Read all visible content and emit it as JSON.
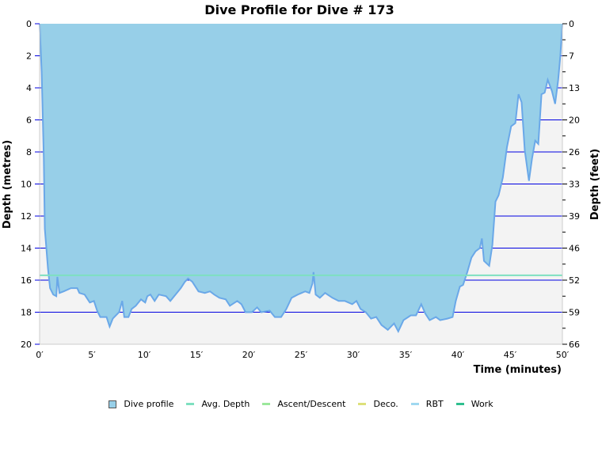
{
  "chart_data": {
    "type": "area",
    "title": "Dive Profile for Dive # 173",
    "xlabel": "Time (minutes)",
    "ylabel": "Depth (metres)",
    "ylabel_right": "Depth (feet)",
    "xlim": [
      0,
      50
    ],
    "ylim": [
      0,
      20
    ],
    "y_inverted": true,
    "x_ticks": [
      "0′",
      "5′",
      "10′",
      "15′",
      "20′",
      "25′",
      "30′",
      "35′",
      "40′",
      "45′",
      "50′"
    ],
    "y_ticks": [
      "0",
      "2",
      "4",
      "6",
      "8",
      "10",
      "12",
      "14",
      "16",
      "18",
      "20"
    ],
    "y_right_ticks": [
      "0",
      "7",
      "13",
      "20",
      "26",
      "33",
      "39",
      "46",
      "52",
      "59",
      "66"
    ],
    "grid": true,
    "legend_position": "bottom",
    "avg_depth": 15.7,
    "series": [
      {
        "name": "Dive profile",
        "color": "#97cfe8",
        "stroke": "#6aa8e8",
        "x": [
          0,
          0.2,
          0.4,
          0.5,
          0.8,
          1.0,
          1.3,
          1.6,
          1.7,
          1.9,
          2.3,
          3.0,
          3.6,
          3.8,
          4.3,
          4.8,
          5.2,
          5.5,
          5.8,
          6.4,
          6.7,
          7.0,
          7.6,
          7.9,
          8.1,
          8.5,
          8.8,
          9.2,
          9.7,
          10.1,
          10.3,
          10.6,
          11.0,
          11.4,
          12.1,
          12.5,
          13.0,
          13.5,
          13.9,
          14.2,
          14.6,
          15.2,
          15.8,
          16.3,
          16.7,
          17.2,
          17.8,
          18.2,
          18.9,
          19.3,
          19.7,
          20.3,
          20.8,
          21.2,
          22.0,
          22.5,
          23.1,
          23.6,
          24.1,
          24.7,
          25.4,
          25.8,
          26.1,
          26.2,
          26.4,
          26.8,
          27.3,
          28.0,
          28.6,
          29.2,
          29.9,
          30.3,
          30.7,
          31.2,
          31.7,
          32.2,
          32.7,
          33.3,
          33.9,
          34.3,
          34.8,
          35.5,
          36.0,
          36.5,
          36.9,
          37.3,
          37.9,
          38.3,
          39.0,
          39.5,
          39.8,
          40.2,
          40.5,
          40.9,
          41.3,
          41.7,
          42.1,
          42.3,
          42.5,
          43.0,
          43.3,
          43.6,
          43.9,
          44.3,
          44.7,
          45.1,
          45.5,
          45.8,
          46.1,
          46.4,
          46.8,
          47.1,
          47.4,
          47.7,
          48.0,
          48.3,
          48.6,
          49.0,
          49.3,
          49.6,
          49.8,
          50.0
        ],
        "y": [
          0,
          3.0,
          8.4,
          12.8,
          15.3,
          16.5,
          16.9,
          17.0,
          15.8,
          16.8,
          16.7,
          16.5,
          16.5,
          16.8,
          16.9,
          17.4,
          17.3,
          17.9,
          18.3,
          18.3,
          18.9,
          18.4,
          18.0,
          17.3,
          18.3,
          18.3,
          17.8,
          17.6,
          17.2,
          17.4,
          17.0,
          16.9,
          17.3,
          16.9,
          17.0,
          17.3,
          16.9,
          16.5,
          16.1,
          15.9,
          16.1,
          16.7,
          16.8,
          16.7,
          16.9,
          17.1,
          17.2,
          17.6,
          17.3,
          17.5,
          18.0,
          18.0,
          17.7,
          18.0,
          17.9,
          18.3,
          18.3,
          17.8,
          17.1,
          16.9,
          16.7,
          16.8,
          16.2,
          15.5,
          16.9,
          17.1,
          16.8,
          17.1,
          17.3,
          17.3,
          17.5,
          17.3,
          17.8,
          18.0,
          18.4,
          18.3,
          18.8,
          19.1,
          18.7,
          19.2,
          18.5,
          18.2,
          18.2,
          17.5,
          18.1,
          18.5,
          18.3,
          18.5,
          18.4,
          18.3,
          17.3,
          16.4,
          16.3,
          15.5,
          14.6,
          14.2,
          14.0,
          13.4,
          14.8,
          15.1,
          13.8,
          11.1,
          10.7,
          9.6,
          7.7,
          6.4,
          6.2,
          4.4,
          4.9,
          7.9,
          9.8,
          8.4,
          7.3,
          7.5,
          4.4,
          4.3,
          3.5,
          4.2,
          5.0,
          3.5,
          2.0,
          0
        ]
      }
    ],
    "legend": [
      {
        "label": "Dive profile",
        "color": "#97cfe8",
        "kind": "box"
      },
      {
        "label": "Avg. Depth",
        "color": "#7ee0c0",
        "kind": "line"
      },
      {
        "label": "Ascent/Descent",
        "color": "#9be89b",
        "kind": "line"
      },
      {
        "label": "Deco.",
        "color": "#dde07a",
        "kind": "line"
      },
      {
        "label": "RBT",
        "color": "#9fd8f0",
        "kind": "line"
      },
      {
        "label": "Work",
        "color": "#2fbf8f",
        "kind": "line"
      }
    ]
  }
}
